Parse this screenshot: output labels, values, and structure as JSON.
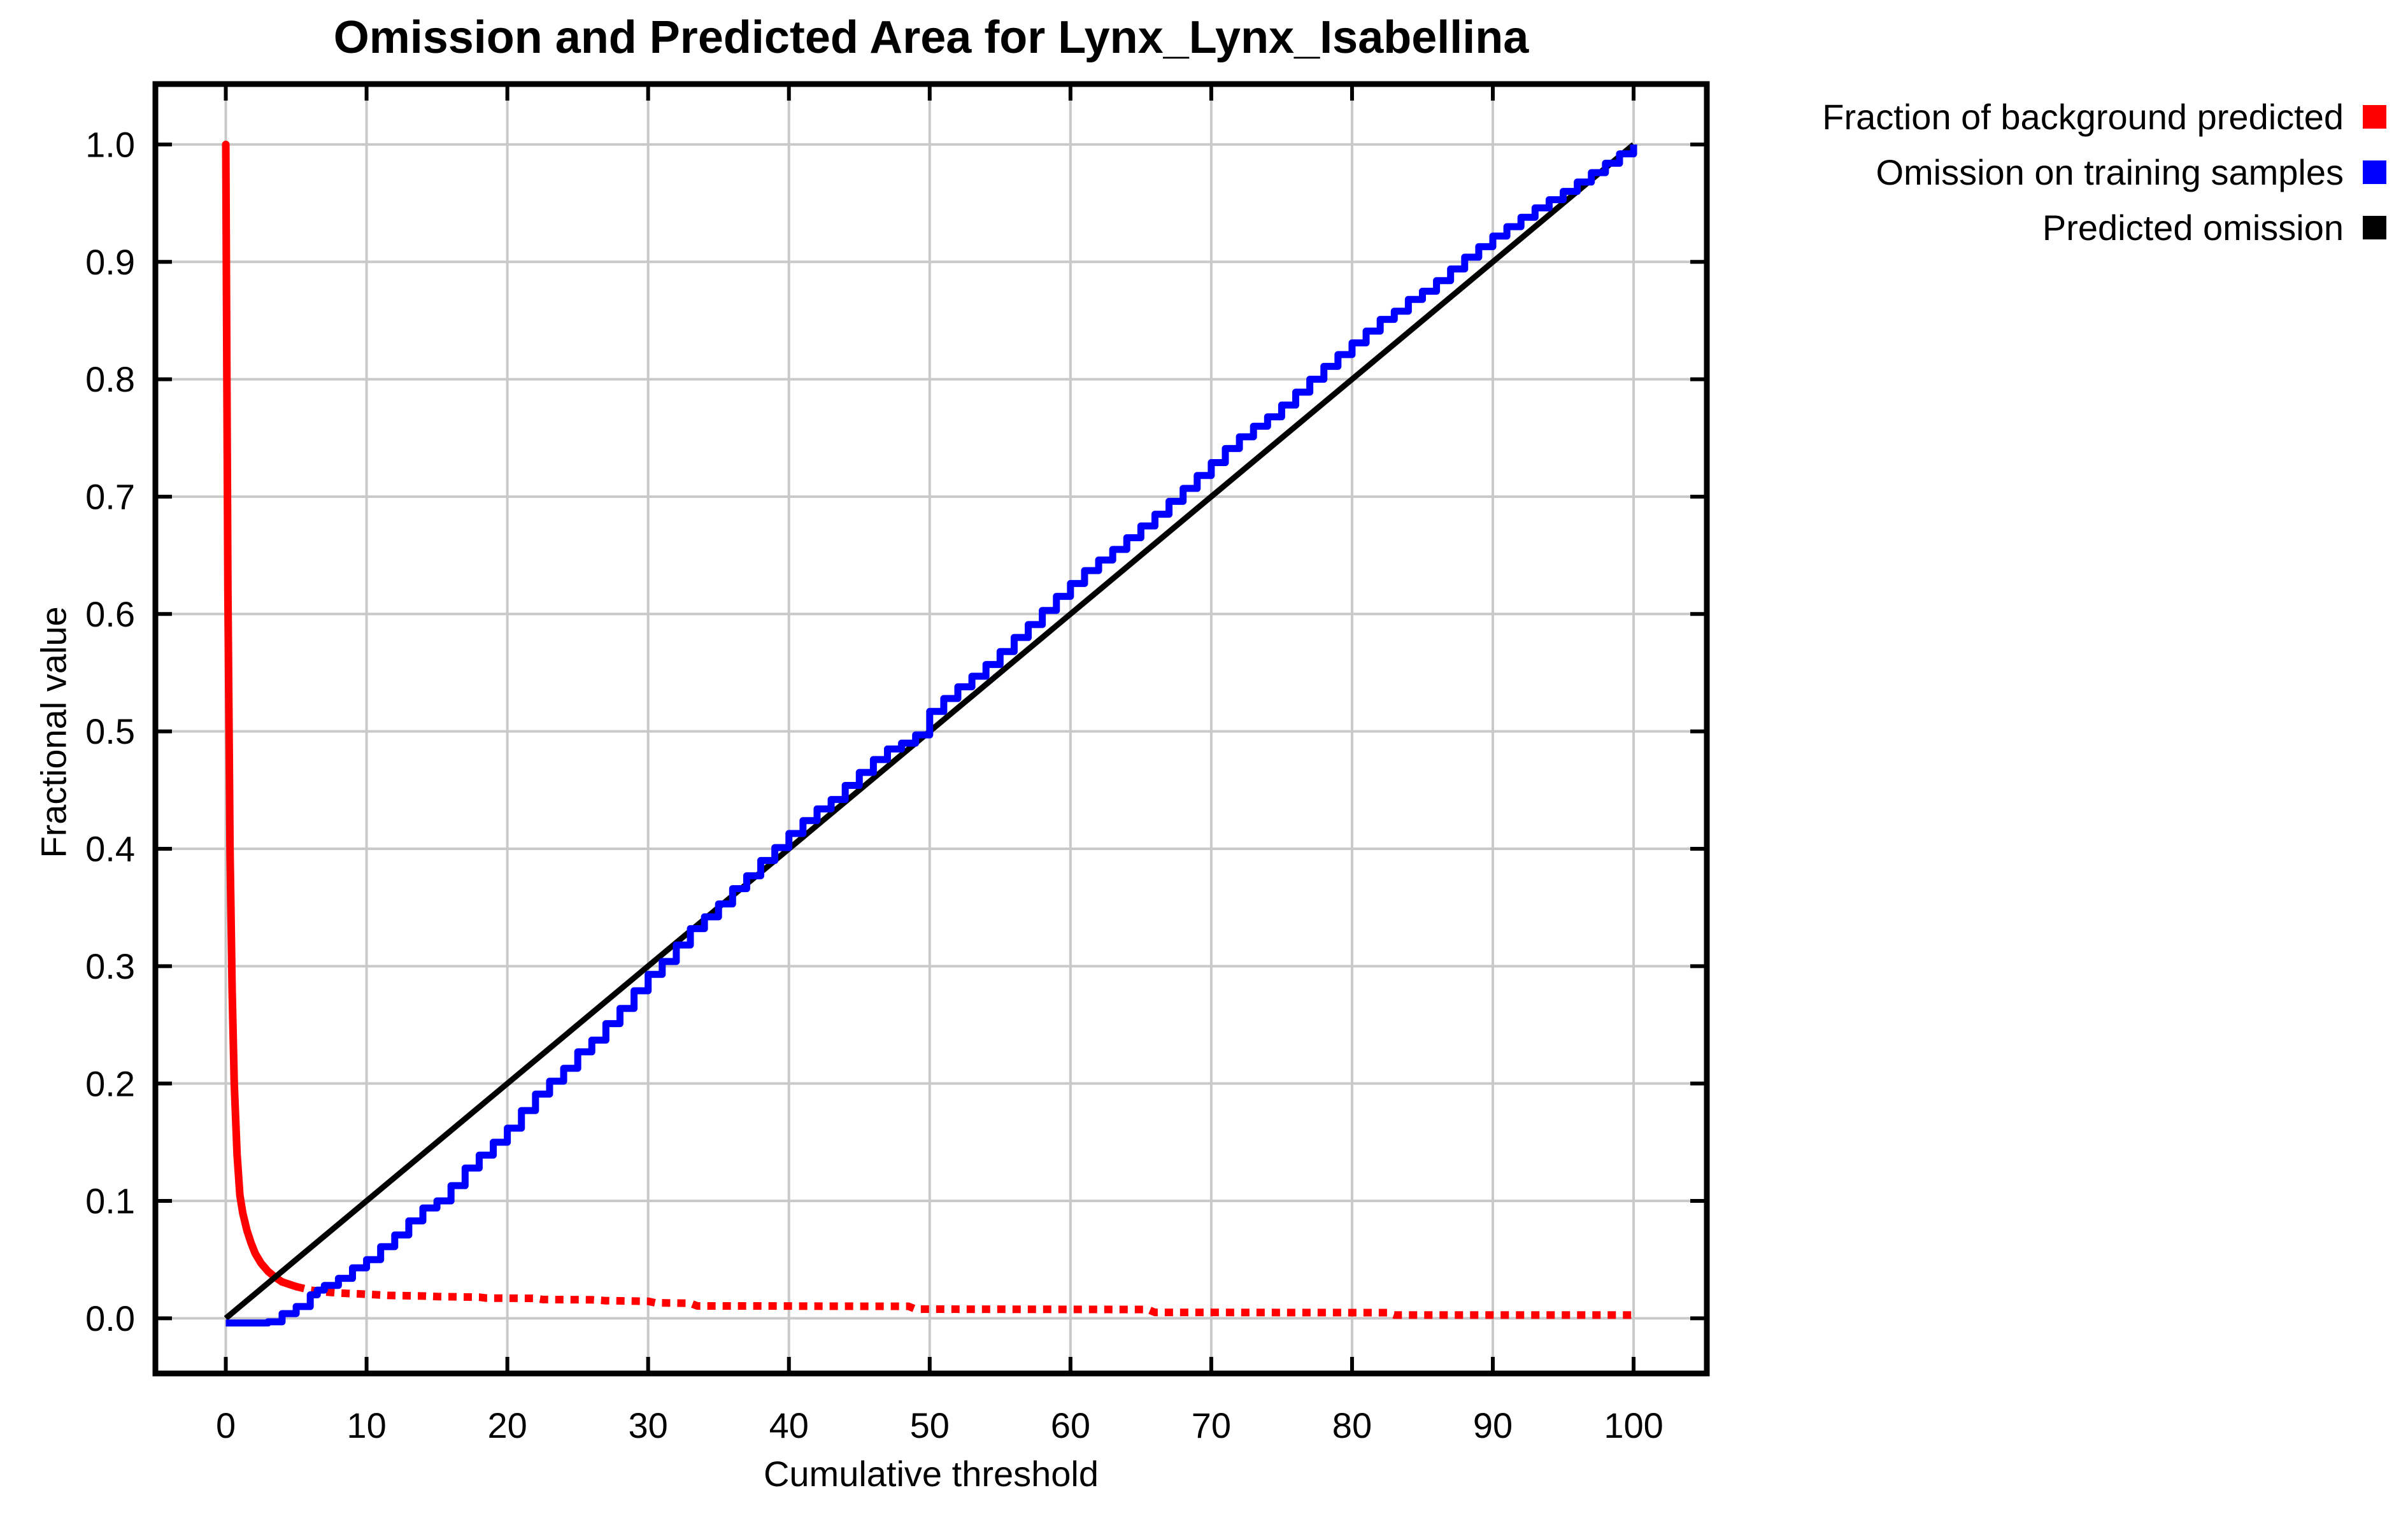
{
  "background_color": "#ffffff",
  "chart_data": {
    "type": "line",
    "title": "Omission and Predicted Area for Lynx_Lynx_Isabellina",
    "xlabel": "Cumulative threshold",
    "ylabel": "Fractional value",
    "xlim": [
      -5,
      105.2
    ],
    "ylim": [
      -0.047,
      1.0515
    ],
    "xticks": [
      0,
      10,
      20,
      30,
      40,
      50,
      60,
      70,
      80,
      90,
      100
    ],
    "xtick_labels": [
      "0",
      "10",
      "20",
      "30",
      "40",
      "50",
      "60",
      "70",
      "80",
      "90",
      "100"
    ],
    "yticks": [
      0.0,
      0.1,
      0.2,
      0.3,
      0.4,
      0.5,
      0.6,
      0.7,
      0.8,
      0.9,
      1.0
    ],
    "ytick_labels": [
      "0.0",
      "0.1",
      "0.2",
      "0.3",
      "0.4",
      "0.5",
      "0.6",
      "0.7",
      "0.8",
      "0.9",
      "1.0"
    ],
    "grid": true,
    "grid_color": "#c9c9c9",
    "axis_color": "#000000",
    "legend_position": "outside-top-right",
    "series": [
      {
        "name": "Fraction of background predicted",
        "color": "#ff0000",
        "interpolation": "linear",
        "line_style": "solid-drop-then-dotted-tail",
        "points": [
          [
            0,
            1.0
          ],
          [
            0.15,
            0.62
          ],
          [
            0.3,
            0.4
          ],
          [
            0.45,
            0.28
          ],
          [
            0.6,
            0.2
          ],
          [
            0.8,
            0.14
          ],
          [
            1,
            0.105
          ],
          [
            1.2,
            0.09
          ],
          [
            1.5,
            0.075
          ],
          [
            1.8,
            0.064
          ],
          [
            2.1,
            0.055
          ],
          [
            2.5,
            0.047
          ],
          [
            3,
            0.04
          ],
          [
            3.5,
            0.035
          ],
          [
            4,
            0.031
          ],
          [
            4.5,
            0.029
          ],
          [
            5,
            0.027
          ],
          [
            6,
            0.024
          ],
          [
            7,
            0.0225
          ],
          [
            8,
            0.0215
          ],
          [
            9,
            0.021
          ],
          [
            10,
            0.0205
          ],
          [
            11.5,
            0.0195
          ],
          [
            14,
            0.019
          ],
          [
            15,
            0.0185
          ],
          [
            18,
            0.018
          ],
          [
            18.5,
            0.0172
          ],
          [
            22,
            0.017
          ],
          [
            22.5,
            0.016
          ],
          [
            26,
            0.0158
          ],
          [
            27,
            0.015
          ],
          [
            30,
            0.0145
          ],
          [
            30.5,
            0.0132
          ],
          [
            33,
            0.0128
          ],
          [
            33.5,
            0.0105
          ],
          [
            38,
            0.0105
          ],
          [
            43,
            0.0103
          ],
          [
            48.5,
            0.0102
          ],
          [
            49,
            0.0078
          ],
          [
            55,
            0.0077
          ],
          [
            60,
            0.0076
          ],
          [
            65.5,
            0.0075
          ],
          [
            66,
            0.005
          ],
          [
            70,
            0.005
          ],
          [
            75,
            0.0049
          ],
          [
            82.5,
            0.0048
          ],
          [
            83,
            0.0028
          ],
          [
            88,
            0.0028
          ],
          [
            93,
            0.0028
          ],
          [
            100,
            0.0028
          ]
        ]
      },
      {
        "name": "Omission on training samples",
        "color": "#0000ff",
        "interpolation": "step",
        "line_style": "solid",
        "points": [
          [
            0,
            -0.004
          ],
          [
            1,
            -0.004
          ],
          [
            2,
            -0.004
          ],
          [
            3,
            -0.003
          ],
          [
            4,
            0.004
          ],
          [
            5,
            0.01
          ],
          [
            6,
            0.02
          ],
          [
            6.5,
            0.024
          ],
          [
            7,
            0.028
          ],
          [
            8,
            0.034
          ],
          [
            9,
            0.043
          ],
          [
            10,
            0.05
          ],
          [
            11,
            0.061
          ],
          [
            12,
            0.071
          ],
          [
            13,
            0.083
          ],
          [
            14,
            0.094
          ],
          [
            15,
            0.1
          ],
          [
            16,
            0.113
          ],
          [
            17,
            0.128
          ],
          [
            18,
            0.139
          ],
          [
            19,
            0.15
          ],
          [
            20,
            0.162
          ],
          [
            21,
            0.177
          ],
          [
            22,
            0.191
          ],
          [
            23,
            0.202
          ],
          [
            24,
            0.213
          ],
          [
            25,
            0.227
          ],
          [
            26,
            0.237
          ],
          [
            27,
            0.251
          ],
          [
            28,
            0.264
          ],
          [
            29,
            0.279
          ],
          [
            30,
            0.293
          ],
          [
            31,
            0.304
          ],
          [
            32,
            0.318
          ],
          [
            33,
            0.332
          ],
          [
            34,
            0.342
          ],
          [
            35,
            0.353
          ],
          [
            36,
            0.366
          ],
          [
            37,
            0.377
          ],
          [
            38,
            0.39
          ],
          [
            39,
            0.401
          ],
          [
            40,
            0.413
          ],
          [
            41,
            0.424
          ],
          [
            42,
            0.434
          ],
          [
            43,
            0.442
          ],
          [
            44,
            0.454
          ],
          [
            45,
            0.465
          ],
          [
            46,
            0.476
          ],
          [
            47,
            0.485
          ],
          [
            48,
            0.49
          ],
          [
            49,
            0.497
          ],
          [
            50,
            0.517
          ],
          [
            51,
            0.528
          ],
          [
            52,
            0.538
          ],
          [
            53,
            0.547
          ],
          [
            54,
            0.557
          ],
          [
            55,
            0.568
          ],
          [
            56,
            0.58
          ],
          [
            57,
            0.591
          ],
          [
            58,
            0.603
          ],
          [
            59,
            0.615
          ],
          [
            60,
            0.626
          ],
          [
            61,
            0.637
          ],
          [
            62,
            0.646
          ],
          [
            63,
            0.655
          ],
          [
            64,
            0.665
          ],
          [
            65,
            0.675
          ],
          [
            66,
            0.685
          ],
          [
            67,
            0.696
          ],
          [
            68,
            0.707
          ],
          [
            69,
            0.718
          ],
          [
            70,
            0.729
          ],
          [
            71,
            0.741
          ],
          [
            72,
            0.751
          ],
          [
            73,
            0.76
          ],
          [
            74,
            0.768
          ],
          [
            75,
            0.778
          ],
          [
            76,
            0.789
          ],
          [
            77,
            0.8
          ],
          [
            78,
            0.811
          ],
          [
            79,
            0.821
          ],
          [
            80,
            0.831
          ],
          [
            81,
            0.841
          ],
          [
            82,
            0.851
          ],
          [
            83,
            0.858
          ],
          [
            84,
            0.868
          ],
          [
            85,
            0.875
          ],
          [
            86,
            0.884
          ],
          [
            87,
            0.894
          ],
          [
            88,
            0.904
          ],
          [
            89,
            0.913
          ],
          [
            90,
            0.922
          ],
          [
            91,
            0.93
          ],
          [
            92,
            0.938
          ],
          [
            93,
            0.946
          ],
          [
            94,
            0.953
          ],
          [
            95,
            0.96
          ],
          [
            96,
            0.968
          ],
          [
            97,
            0.976
          ],
          [
            98,
            0.984
          ],
          [
            99,
            0.992
          ],
          [
            100,
            1.0
          ]
        ]
      },
      {
        "name": "Predicted omission",
        "color": "#000000",
        "interpolation": "linear",
        "line_style": "solid",
        "points": [
          [
            0,
            0
          ],
          [
            100,
            1
          ]
        ]
      }
    ]
  }
}
